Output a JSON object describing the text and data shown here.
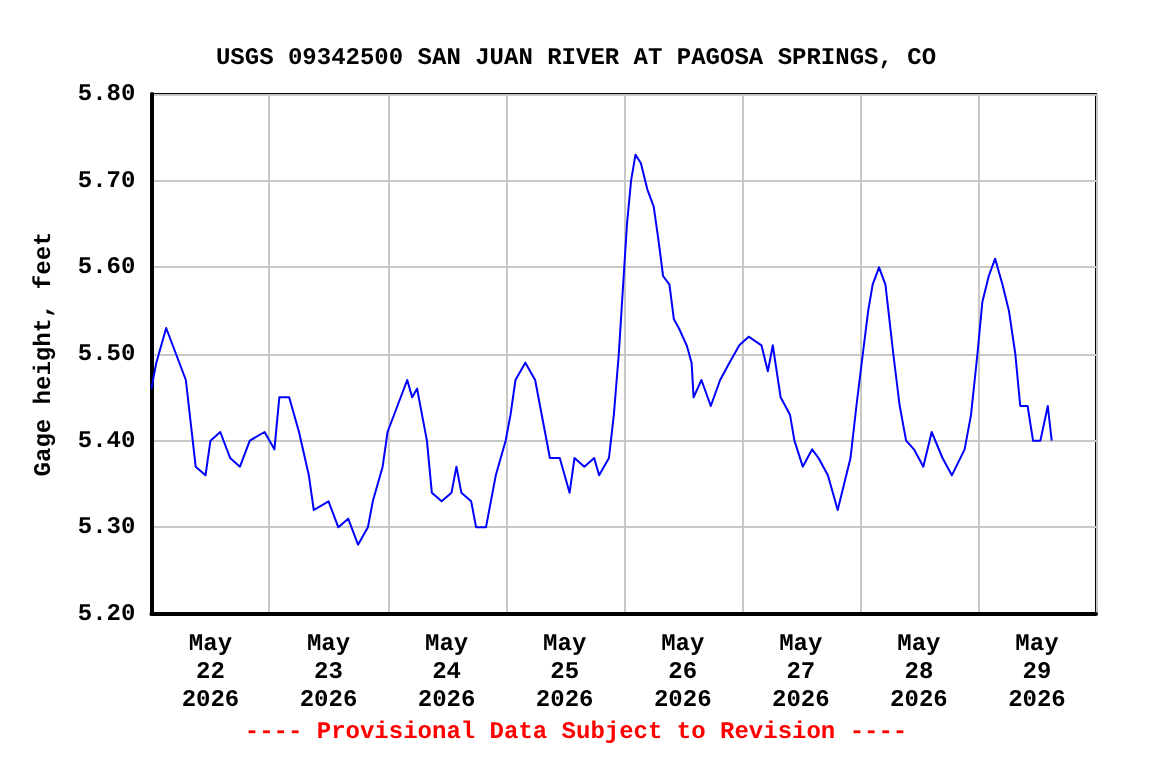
{
  "chart_data": {
    "type": "line",
    "title": "USGS 09342500 SAN JUAN RIVER AT PAGOSA SPRINGS, CO",
    "ylabel": "Gage height, feet",
    "annotations": [
      "---- Provisional Data Subject to Revision ----"
    ],
    "x": [
      "2026-05-22T00:00",
      "2026-05-22T01:00",
      "2026-05-22T03:00",
      "2026-05-22T05:00",
      "2026-05-22T07:00",
      "2026-05-22T08:00",
      "2026-05-22T09:00",
      "2026-05-22T11:00",
      "2026-05-22T12:00",
      "2026-05-22T14:00",
      "2026-05-22T16:00",
      "2026-05-22T18:00",
      "2026-05-22T20:00",
      "2026-05-22T23:00",
      "2026-05-23T01:00",
      "2026-05-23T02:00",
      "2026-05-23T04:00",
      "2026-05-23T06:00",
      "2026-05-23T08:00",
      "2026-05-23T09:00",
      "2026-05-23T12:00",
      "2026-05-23T14:00",
      "2026-05-23T16:00",
      "2026-05-23T18:00",
      "2026-05-23T20:00",
      "2026-05-23T21:00",
      "2026-05-23T23:00",
      "2026-05-24T00:00",
      "2026-05-24T02:00",
      "2026-05-24T04:00",
      "2026-05-24T05:00",
      "2026-05-24T06:00",
      "2026-05-24T08:00",
      "2026-05-24T09:00",
      "2026-05-24T11:00",
      "2026-05-24T13:00",
      "2026-05-24T14:00",
      "2026-05-24T15:00",
      "2026-05-24T17:00",
      "2026-05-24T18:00",
      "2026-05-24T20:00",
      "2026-05-24T21:00",
      "2026-05-24T22:00",
      "2026-05-25T00:00",
      "2026-05-25T01:00",
      "2026-05-25T02:00",
      "2026-05-25T04:00",
      "2026-05-25T06:00",
      "2026-05-25T07:00",
      "2026-05-25T08:00",
      "2026-05-25T09:00",
      "2026-05-25T11:00",
      "2026-05-25T13:00",
      "2026-05-25T14:00",
      "2026-05-25T16:00",
      "2026-05-25T18:00",
      "2026-05-25T19:00",
      "2026-05-25T21:00",
      "2026-05-25T22:00",
      "2026-05-25T23:00",
      "2026-05-26T00:00",
      "2026-05-26T00:40",
      "2026-05-26T01:30",
      "2026-05-26T02:24",
      "2026-05-26T03:30",
      "2026-05-26T04:48",
      "2026-05-26T06:06",
      "2026-05-26T07:06",
      "2026-05-26T08:00",
      "2026-05-26T09:18",
      "2026-05-26T10:12",
      "2026-05-26T11:12",
      "2026-05-26T12:48",
      "2026-05-26T13:48",
      "2026-05-26T14:12",
      "2026-05-26T15:48",
      "2026-05-26T17:42",
      "2026-05-26T19:36",
      "2026-05-26T21:30",
      "2026-05-26T23:30",
      "2026-05-27T01:24",
      "2026-05-27T04:00",
      "2026-05-27T05:18",
      "2026-05-27T06:18",
      "2026-05-27T07:54",
      "2026-05-27T09:48",
      "2026-05-27T10:42",
      "2026-05-27T12:24",
      "2026-05-27T14:18",
      "2026-05-27T15:36",
      "2026-05-27T17:30",
      "2026-05-27T19:30",
      "2026-05-27T20:48",
      "2026-05-27T22:06",
      "2026-05-27T23:18",
      "2026-05-28T00:36",
      "2026-05-28T01:42",
      "2026-05-28T02:36",
      "2026-05-28T03:54",
      "2026-05-28T05:12",
      "2026-05-28T05:48",
      "2026-05-28T06:48",
      "2026-05-28T08:06",
      "2026-05-28T09:24",
      "2026-05-28T11:00",
      "2026-05-28T12:54",
      "2026-05-28T14:36",
      "2026-05-28T16:48",
      "2026-05-28T18:42",
      "2026-05-28T21:18",
      "2026-05-28T22:36",
      "2026-05-28T23:54",
      "2026-05-29T00:54",
      "2026-05-29T02:12",
      "2026-05-29T03:30",
      "2026-05-29T05:00",
      "2026-05-29T06:18",
      "2026-05-29T07:36",
      "2026-05-29T08:36",
      "2026-05-29T10:06",
      "2026-05-29T11:12",
      "2026-05-29T12:42",
      "2026-05-29T14:12",
      "2026-05-29T15:00"
    ],
    "series": [
      {
        "color": "#0000ff",
        "values": [
          5.46,
          5.49,
          5.53,
          5.5,
          5.47,
          5.42,
          5.37,
          5.36,
          5.4,
          5.41,
          5.38,
          5.37,
          5.4,
          5.41,
          5.39,
          5.45,
          5.45,
          5.41,
          5.36,
          5.32,
          5.33,
          5.3,
          5.31,
          5.28,
          5.3,
          5.33,
          5.37,
          5.41,
          5.44,
          5.47,
          5.45,
          5.46,
          5.4,
          5.34,
          5.33,
          5.34,
          5.37,
          5.34,
          5.33,
          5.3,
          5.3,
          5.33,
          5.36,
          5.4,
          5.43,
          5.47,
          5.49,
          5.47,
          5.44,
          5.41,
          5.38,
          5.38,
          5.34,
          5.38,
          5.37,
          5.38,
          5.36,
          5.38,
          5.43,
          5.5,
          5.59,
          5.65,
          5.7,
          5.73,
          5.72,
          5.69,
          5.67,
          5.63,
          5.59,
          5.58,
          5.54,
          5.53,
          5.51,
          5.49,
          5.45,
          5.47,
          5.44,
          5.47,
          5.49,
          5.51,
          5.52,
          5.51,
          5.48,
          5.51,
          5.45,
          5.43,
          5.4,
          5.37,
          5.39,
          5.38,
          5.36,
          5.32,
          5.35,
          5.38,
          5.44,
          5.5,
          5.55,
          5.58,
          5.6,
          5.58,
          5.55,
          5.5,
          5.44,
          5.4,
          5.39,
          5.37,
          5.41,
          5.38,
          5.36,
          5.39,
          5.43,
          5.5,
          5.56,
          5.59,
          5.61,
          5.58,
          5.55,
          5.5,
          5.44,
          5.44,
          5.4,
          5.4,
          5.44,
          5.4
        ]
      }
    ],
    "xlim": [
      "2026-05-22T00:00",
      "2026-05-30T00:00"
    ],
    "xticks": [
      {
        "value": "2026-05-22T00:00",
        "label": null
      },
      {
        "value": "2026-05-22T12:00",
        "label": "May\n22\n2026"
      },
      {
        "value": "2026-05-23T00:00",
        "label": null
      },
      {
        "value": "2026-05-23T12:00",
        "label": "May\n23\n2026"
      },
      {
        "value": "2026-05-24T00:00",
        "label": null
      },
      {
        "value": "2026-05-24T12:00",
        "label": "May\n24\n2026"
      },
      {
        "value": "2026-05-25T00:00",
        "label": null
      },
      {
        "value": "2026-05-25T12:00",
        "label": "May\n25\n2026"
      },
      {
        "value": "2026-05-26T00:00",
        "label": null
      },
      {
        "value": "2026-05-26T12:00",
        "label": "May\n26\n2026"
      },
      {
        "value": "2026-05-27T00:00",
        "label": null
      },
      {
        "value": "2026-05-27T12:00",
        "label": "May\n27\n2026"
      },
      {
        "value": "2026-05-28T00:00",
        "label": null
      },
      {
        "value": "2026-05-28T12:00",
        "label": "May\n28\n2026"
      },
      {
        "value": "2026-05-29T00:00",
        "label": null
      },
      {
        "value": "2026-05-29T12:00",
        "label": "May\n29\n2026"
      },
      {
        "value": "2026-05-30T00:00",
        "label": null
      }
    ],
    "ylim": [
      5.2,
      5.8
    ],
    "yticks": [
      {
        "value": 5.2,
        "label": "5.20"
      },
      {
        "value": 5.3,
        "label": "5.30"
      },
      {
        "value": 5.4,
        "label": "5.40"
      },
      {
        "value": 5.5,
        "label": "5.50"
      },
      {
        "value": 5.6,
        "label": "5.60"
      },
      {
        "value": 5.7,
        "label": "5.70"
      },
      {
        "value": 5.8,
        "label": "5.80"
      }
    ],
    "grid": true,
    "marker": "none",
    "line_style": "solid"
  }
}
